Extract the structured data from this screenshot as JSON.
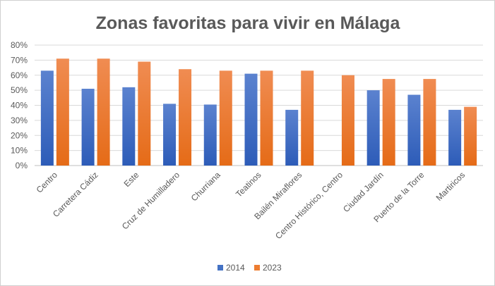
{
  "chart_data": {
    "type": "bar",
    "title": "Zonas favoritas para vivir en Málaga",
    "xlabel": "",
    "ylabel": "",
    "ylim": [
      0,
      0.8
    ],
    "yticks": [
      "0%",
      "10%",
      "20%",
      "30%",
      "40%",
      "50%",
      "60%",
      "70%",
      "80%"
    ],
    "grid": true,
    "legend": "bottom",
    "categories": [
      "Centro",
      "Carretera Cádiz",
      "Este",
      "Cruz de Humilladero",
      "Churriana",
      "Teatinos",
      "Bailén Miraflores",
      "Centro Histórico, Centro",
      "Ciudad Jardín",
      "Puerto de la Torre",
      "Martiricos"
    ],
    "series": [
      {
        "name": "2014",
        "color": "#4472c4",
        "values": [
          0.63,
          0.51,
          0.52,
          0.41,
          0.405,
          0.61,
          0.37,
          null,
          0.5,
          0.47,
          0.37
        ]
      },
      {
        "name": "2023",
        "color": "#ed7d31",
        "values": [
          0.71,
          0.71,
          0.69,
          0.64,
          0.63,
          0.63,
          0.63,
          0.6,
          0.575,
          0.575,
          0.39
        ]
      }
    ]
  }
}
